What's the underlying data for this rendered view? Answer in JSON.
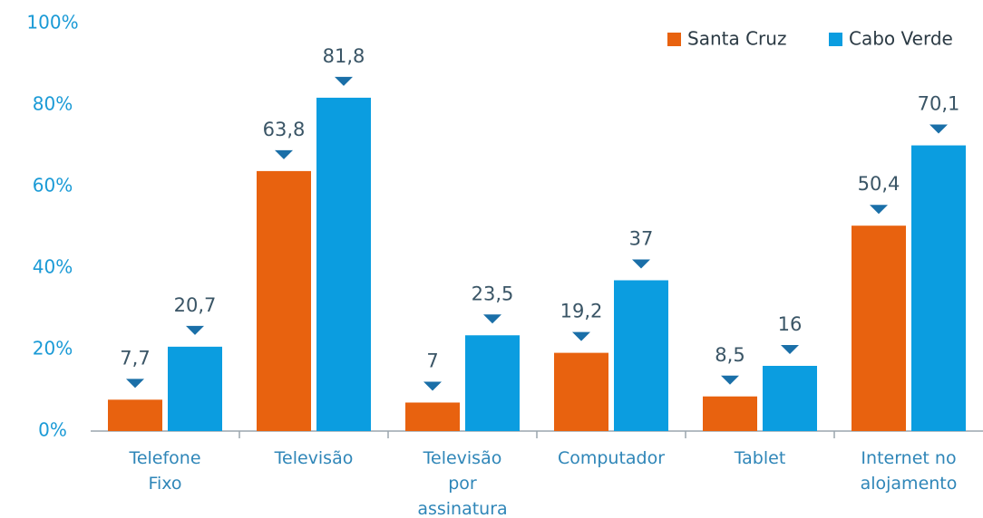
{
  "chart_data": {
    "type": "bar",
    "categories": [
      "Telefone\nFixo",
      "Televisão",
      "Televisão\npor\nassinatura",
      "Computador",
      "Tablet",
      "Internet no\nalojamento"
    ],
    "series": [
      {
        "name": "Santa Cruz",
        "color": "#e8620f",
        "values": [
          7.7,
          63.8,
          7,
          19.2,
          8.5,
          50.4
        ],
        "value_labels": [
          "7,7",
          "63,8",
          "7",
          "19,2",
          "8,5",
          "50,4"
        ]
      },
      {
        "name": "Cabo Verde",
        "color": "#0b9de0",
        "values": [
          20.7,
          81.8,
          23.5,
          37,
          16,
          70.1
        ],
        "value_labels": [
          "20,7",
          "81,8",
          "23,5",
          "37",
          "16",
          "70,1"
        ]
      }
    ],
    "ylim": [
      0,
      100
    ],
    "yticks": [
      {
        "value": 0,
        "label": "0%"
      },
      {
        "value": 20,
        "label": "20%"
      },
      {
        "value": 40,
        "label": "40%"
      },
      {
        "value": 60,
        "label": "60%"
      },
      {
        "value": 80,
        "label": "80%"
      },
      {
        "value": 100,
        "label": "100%"
      }
    ],
    "legend": "top-right"
  }
}
